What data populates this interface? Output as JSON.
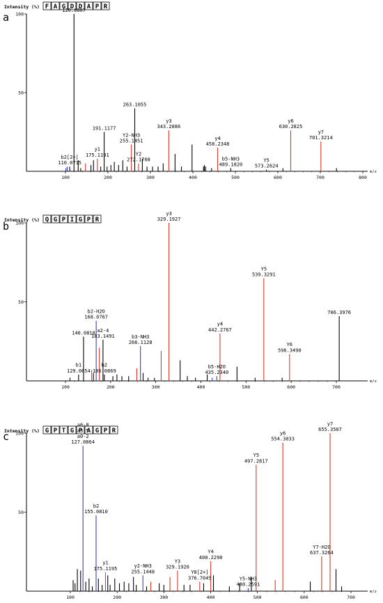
{
  "figure": {
    "panels": [
      {
        "label": "a",
        "ylabel": "Intensity (%)",
        "xlabel": "m/z",
        "sequence": [
          "F",
          "A",
          "G",
          "D",
          "D",
          "A",
          "P",
          "R"
        ]
      },
      {
        "label": "b",
        "ylabel": "Intensity (%)",
        "xlabel": "m/z",
        "sequence": [
          "Q",
          "G",
          "P",
          "I",
          "G",
          "P",
          "R"
        ]
      },
      {
        "label": "c",
        "ylabel": "Intensity (%)",
        "xlabel": "m/z",
        "sequence": [
          "G",
          "P",
          "T",
          "G",
          "P",
          "A",
          "G",
          "P",
          "R"
        ]
      }
    ]
  },
  "colors": {
    "black": "#000000",
    "red": "#d9382a",
    "blue": "#3a3fb4",
    "grey": "#555555"
  },
  "chart_data": [
    {
      "type": "bar",
      "title": "",
      "xlabel": "m/z",
      "ylabel": "Intensity (%)",
      "xlim": [
        0,
        820
      ],
      "ylim": [
        0,
        100
      ],
      "xticks": [
        100,
        200,
        300,
        400,
        500,
        600,
        700,
        800
      ],
      "yticks": [
        50,
        100
      ],
      "peaks": [
        {
          "mz": 101,
          "intensity": 2,
          "color": "blue"
        },
        {
          "mz": 104,
          "intensity": 3,
          "color": "blue"
        },
        {
          "mz": 110.0715,
          "intensity": 3,
          "color": "black"
        },
        {
          "mz": 120.0807,
          "intensity": 100,
          "color": "black"
        },
        {
          "mz": 130,
          "intensity": 7,
          "color": "black"
        },
        {
          "mz": 136,
          "intensity": 2,
          "color": "black"
        },
        {
          "mz": 147,
          "intensity": 5,
          "color": "red"
        },
        {
          "mz": 160,
          "intensity": 4,
          "color": "black"
        },
        {
          "mz": 166,
          "intensity": 7,
          "color": "black"
        },
        {
          "mz": 175.1191,
          "intensity": 8,
          "color": "red"
        },
        {
          "mz": 183,
          "intensity": 3,
          "color": "black"
        },
        {
          "mz": 191.1177,
          "intensity": 25,
          "color": "black"
        },
        {
          "mz": 198,
          "intensity": 3,
          "color": "black"
        },
        {
          "mz": 207,
          "intensity": 4,
          "color": "black"
        },
        {
          "mz": 215,
          "intensity": 6,
          "color": "black"
        },
        {
          "mz": 225,
          "intensity": 4,
          "color": "black"
        },
        {
          "mz": 235,
          "intensity": 7,
          "color": "black"
        },
        {
          "mz": 245,
          "intensity": 3,
          "color": "black"
        },
        {
          "mz": 255.1451,
          "intensity": 17,
          "color": "red"
        },
        {
          "mz": 263.1055,
          "intensity": 40,
          "color": "black"
        },
        {
          "mz": 272.1708,
          "intensity": 5,
          "color": "red"
        },
        {
          "mz": 281,
          "intensity": 8,
          "color": "black"
        },
        {
          "mz": 292,
          "intensity": 3,
          "color": "black"
        },
        {
          "mz": 305,
          "intensity": 3,
          "color": "black"
        },
        {
          "mz": 318,
          "intensity": 3,
          "color": "black"
        },
        {
          "mz": 330,
          "intensity": 5,
          "color": "black"
        },
        {
          "mz": 343.2086,
          "intensity": 26,
          "color": "red"
        },
        {
          "mz": 358,
          "intensity": 11,
          "color": "black"
        },
        {
          "mz": 373,
          "intensity": 3,
          "color": "black"
        },
        {
          "mz": 398,
          "intensity": 17,
          "color": "black"
        },
        {
          "mz": 425,
          "intensity": 3,
          "color": "black"
        },
        {
          "mz": 427,
          "intensity": 4,
          "color": "black"
        },
        {
          "mz": 430,
          "intensity": 3,
          "color": "black"
        },
        {
          "mz": 444,
          "intensity": 2,
          "color": "black"
        },
        {
          "mz": 458.2348,
          "intensity": 15,
          "color": "red"
        },
        {
          "mz": 489.182,
          "intensity": 2,
          "color": "black"
        },
        {
          "mz": 573.2624,
          "intensity": 1,
          "color": "black"
        },
        {
          "mz": 612,
          "intensity": 2,
          "color": "black"
        },
        {
          "mz": 630.2825,
          "intensity": 26,
          "color": "red"
        },
        {
          "mz": 701.3214,
          "intensity": 19,
          "color": "red"
        },
        {
          "mz": 738,
          "intensity": 2,
          "color": "black"
        }
      ],
      "annotations": [
        {
          "text": "120.0807",
          "mz": 120.0807,
          "intensity": 100,
          "lines": 1
        },
        {
          "text": "b2[2+]\n110.0715",
          "mz": 110.0715,
          "intensity": 3,
          "lines": 2
        },
        {
          "text": "y1\n175.1191",
          "mz": 175.1191,
          "intensity": 8,
          "lines": 2
        },
        {
          "text": "191.1177",
          "mz": 191.1177,
          "intensity": 25,
          "lines": 1
        },
        {
          "text": "263.1055",
          "mz": 263.1055,
          "intensity": 40,
          "lines": 1
        },
        {
          "text": "Y2-NH3\n255.1451",
          "mz": 255.1451,
          "intensity": 17,
          "lines": 2
        },
        {
          "text": "Y2\n272.1708",
          "mz": 272.1708,
          "intensity": 5,
          "lines": 2
        },
        {
          "text": "y3\n343.2086",
          "mz": 343.2086,
          "intensity": 26,
          "lines": 2
        },
        {
          "text": "y4\n458.2348",
          "mz": 458.2348,
          "intensity": 15,
          "lines": 2
        },
        {
          "text": "b5-NH3\n489.1820",
          "mz": 489.182,
          "intensity": 2,
          "lines": 2
        },
        {
          "text": "Y5\n573.2624",
          "mz": 573.2624,
          "intensity": 1,
          "lines": 2
        },
        {
          "text": "y6\n630.2825",
          "mz": 630.2825,
          "intensity": 26,
          "lines": 2
        },
        {
          "text": "y7\n701.3214",
          "mz": 701.3214,
          "intensity": 19,
          "lines": 2
        }
      ]
    },
    {
      "type": "bar",
      "title": "",
      "xlabel": "m/z",
      "ylabel": "Intensity (%)",
      "xlim": [
        0,
        780
      ],
      "ylim": [
        0,
        100
      ],
      "xticks": [
        100,
        200,
        300,
        400,
        500,
        600,
        700
      ],
      "yticks": [
        50,
        100
      ],
      "peaks": [
        {
          "mz": 110,
          "intensity": 2,
          "color": "black"
        },
        {
          "mz": 129.0654,
          "intensity": 4,
          "color": "black"
        },
        {
          "mz": 140.0818,
          "intensity": 28,
          "color": "black"
        },
        {
          "mz": 158,
          "intensity": 7,
          "color": "red"
        },
        {
          "mz": 162,
          "intensity": 5,
          "color": "black"
        },
        {
          "mz": 168.0767,
          "intensity": 38,
          "color": "blue"
        },
        {
          "mz": 175,
          "intensity": 21,
          "color": "red"
        },
        {
          "mz": 183.1491,
          "intensity": 26,
          "color": "black"
        },
        {
          "mz": 186.0869,
          "intensity": 4,
          "color": "black"
        },
        {
          "mz": 205,
          "intensity": 3,
          "color": "black"
        },
        {
          "mz": 214,
          "intensity": 4,
          "color": "black"
        },
        {
          "mz": 225,
          "intensity": 3,
          "color": "black"
        },
        {
          "mz": 240,
          "intensity": 3,
          "color": "black"
        },
        {
          "mz": 258,
          "intensity": 8,
          "color": "red"
        },
        {
          "mz": 266.1128,
          "intensity": 22,
          "color": "blue"
        },
        {
          "mz": 272,
          "intensity": 5,
          "color": "black"
        },
        {
          "mz": 283,
          "intensity": 2,
          "color": "black"
        },
        {
          "mz": 297,
          "intensity": 2,
          "color": "black"
        },
        {
          "mz": 312,
          "intensity": 19,
          "color": "red"
        },
        {
          "mz": 329.1927,
          "intensity": 100,
          "color": "red"
        },
        {
          "mz": 354,
          "intensity": 13,
          "color": "black"
        },
        {
          "mz": 370,
          "intensity": 3,
          "color": "black"
        },
        {
          "mz": 388,
          "intensity": 2,
          "color": "black"
        },
        {
          "mz": 414,
          "intensity": 4,
          "color": "black"
        },
        {
          "mz": 425,
          "intensity": 2,
          "color": "blue"
        },
        {
          "mz": 435.234,
          "intensity": 3,
          "color": "blue"
        },
        {
          "mz": 442.2767,
          "intensity": 30,
          "color": "red"
        },
        {
          "mz": 480,
          "intensity": 9,
          "color": "black"
        },
        {
          "mz": 520,
          "intensity": 2,
          "color": "black"
        },
        {
          "mz": 539.3291,
          "intensity": 65,
          "color": "red"
        },
        {
          "mz": 580,
          "intensity": 2,
          "color": "black"
        },
        {
          "mz": 596.349,
          "intensity": 17,
          "color": "red"
        },
        {
          "mz": 706.3976,
          "intensity": 41,
          "color": "black"
        }
      ],
      "annotations": [
        {
          "text": "b1\n129.0654",
          "mz": 129.0654,
          "intensity": 4,
          "lines": 2
        },
        {
          "text": "140.0818",
          "mz": 140.0818,
          "intensity": 28,
          "lines": 1
        },
        {
          "text": "b2-H2O\n168.0767",
          "mz": 168.0767,
          "intensity": 38,
          "lines": 2
        },
        {
          "text": "a2-4\n183.1491",
          "mz": 183.1491,
          "intensity": 26,
          "lines": 2
        },
        {
          "text": "b2\n186.0869",
          "mz": 186.0869,
          "intensity": 4,
          "lines": 2
        },
        {
          "text": "b3-NH3\n266.1128",
          "mz": 266.1128,
          "intensity": 22,
          "lines": 2
        },
        {
          "text": "y3\n329.1927",
          "mz": 329.1927,
          "intensity": 100,
          "lines": 2
        },
        {
          "text": "b5-H2O\n435.2340",
          "mz": 435.234,
          "intensity": 3,
          "lines": 2
        },
        {
          "text": "y4\n442.2767",
          "mz": 442.2767,
          "intensity": 30,
          "lines": 2
        },
        {
          "text": "Y5\n539.3291",
          "mz": 539.3291,
          "intensity": 65,
          "lines": 2
        },
        {
          "text": "Y6\n596.3490",
          "mz": 596.349,
          "intensity": 17,
          "lines": 2
        },
        {
          "text": "706.3976",
          "mz": 706.3976,
          "intensity": 41,
          "lines": 1
        }
      ]
    },
    {
      "type": "bar",
      "title": "",
      "xlabel": "m/z",
      "ylabel": "Intensity (%)",
      "xlim": [
        0,
        730
      ],
      "ylim": [
        0,
        100
      ],
      "xticks": [
        100,
        200,
        300,
        400,
        500,
        600,
        700
      ],
      "yticks": [
        50,
        100
      ],
      "peaks": [
        {
          "mz": 106,
          "intensity": 7,
          "color": "black"
        },
        {
          "mz": 110,
          "intensity": 5,
          "color": "black"
        },
        {
          "mz": 115,
          "intensity": 14,
          "color": "black"
        },
        {
          "mz": 122,
          "intensity": 13,
          "color": "black"
        },
        {
          "mz": 127.0864,
          "intensity": 92,
          "color": "blue"
        },
        {
          "mz": 133,
          "intensity": 6,
          "color": "black"
        },
        {
          "mz": 140,
          "intensity": 8,
          "color": "black"
        },
        {
          "mz": 147,
          "intensity": 3,
          "color": "black"
        },
        {
          "mz": 155.081,
          "intensity": 48,
          "color": "blue"
        },
        {
          "mz": 160,
          "intensity": 8,
          "color": "black"
        },
        {
          "mz": 168,
          "intensity": 4,
          "color": "black"
        },
        {
          "mz": 175.1195,
          "intensity": 12,
          "color": "red"
        },
        {
          "mz": 180,
          "intensity": 10,
          "color": "black"
        },
        {
          "mz": 185,
          "intensity": 4,
          "color": "black"
        },
        {
          "mz": 195,
          "intensity": 8,
          "color": "black"
        },
        {
          "mz": 205,
          "intensity": 5,
          "color": "black"
        },
        {
          "mz": 215,
          "intensity": 6,
          "color": "black"
        },
        {
          "mz": 225,
          "intensity": 5,
          "color": "black"
        },
        {
          "mz": 235,
          "intensity": 9,
          "color": "black"
        },
        {
          "mz": 241,
          "intensity": 4,
          "color": "black"
        },
        {
          "mz": 255.1448,
          "intensity": 10,
          "color": "blue"
        },
        {
          "mz": 263,
          "intensity": 3,
          "color": "black"
        },
        {
          "mz": 272,
          "intensity": 6,
          "color": "red"
        },
        {
          "mz": 290,
          "intensity": 5,
          "color": "black"
        },
        {
          "mz": 300,
          "intensity": 4,
          "color": "black"
        },
        {
          "mz": 313,
          "intensity": 9,
          "color": "red"
        },
        {
          "mz": 329.192,
          "intensity": 13,
          "color": "red"
        },
        {
          "mz": 343,
          "intensity": 4,
          "color": "black"
        },
        {
          "mz": 356,
          "intensity": 4,
          "color": "black"
        },
        {
          "mz": 376.7045,
          "intensity": 6,
          "color": "red"
        },
        {
          "mz": 385,
          "intensity": 5,
          "color": "black"
        },
        {
          "mz": 400.229,
          "intensity": 19,
          "color": "red"
        },
        {
          "mz": 406,
          "intensity": 10,
          "color": "black"
        },
        {
          "mz": 440,
          "intensity": 3,
          "color": "black"
        },
        {
          "mz": 462,
          "intensity": 5,
          "color": "black"
        },
        {
          "mz": 480.2591,
          "intensity": 2,
          "color": "blue"
        },
        {
          "mz": 487,
          "intensity": 9,
          "color": "black"
        },
        {
          "mz": 497.2817,
          "intensity": 80,
          "color": "red"
        },
        {
          "mz": 538,
          "intensity": 7,
          "color": "red"
        },
        {
          "mz": 554.3033,
          "intensity": 94,
          "color": "red"
        },
        {
          "mz": 613,
          "intensity": 6,
          "color": "black"
        },
        {
          "mz": 637.3264,
          "intensity": 22,
          "color": "red"
        },
        {
          "mz": 655.3507,
          "intensity": 100,
          "color": "red"
        },
        {
          "mz": 668,
          "intensity": 14,
          "color": "black"
        },
        {
          "mz": 680,
          "intensity": 3,
          "color": "black"
        }
      ],
      "annotations": [
        {
          "text": "a6-8\na3-5\na0-2\n127.0864",
          "mz": 127.0864,
          "intensity": 92,
          "lines": 4
        },
        {
          "text": "b2\n155.0810",
          "mz": 155.081,
          "intensity": 48,
          "lines": 2
        },
        {
          "text": "y1\n175.1195",
          "mz": 175.1195,
          "intensity": 12,
          "lines": 2
        },
        {
          "text": "y2-NH3\n255.1448",
          "mz": 255.1448,
          "intensity": 10,
          "lines": 2
        },
        {
          "text": "Y3\n329.1920",
          "mz": 329.192,
          "intensity": 13,
          "lines": 2
        },
        {
          "text": "Y8[2+]\n376.7045",
          "mz": 376.7045,
          "intensity": 6,
          "lines": 2
        },
        {
          "text": "Y4\n400.2290",
          "mz": 400.229,
          "intensity": 19,
          "lines": 2
        },
        {
          "text": "Y5-NH3\n480.2591",
          "mz": 480.2591,
          "intensity": 2,
          "lines": 2
        },
        {
          "text": "Y5\n497.2817",
          "mz": 497.2817,
          "intensity": 80,
          "lines": 2
        },
        {
          "text": "y6\n554.3033",
          "mz": 554.3033,
          "intensity": 94,
          "lines": 2
        },
        {
          "text": "Y7-H2O\n637.3264",
          "mz": 637.3264,
          "intensity": 22,
          "lines": 2
        },
        {
          "text": "y7\n655.3507",
          "mz": 655.3507,
          "intensity": 100,
          "lines": 2
        }
      ]
    }
  ]
}
